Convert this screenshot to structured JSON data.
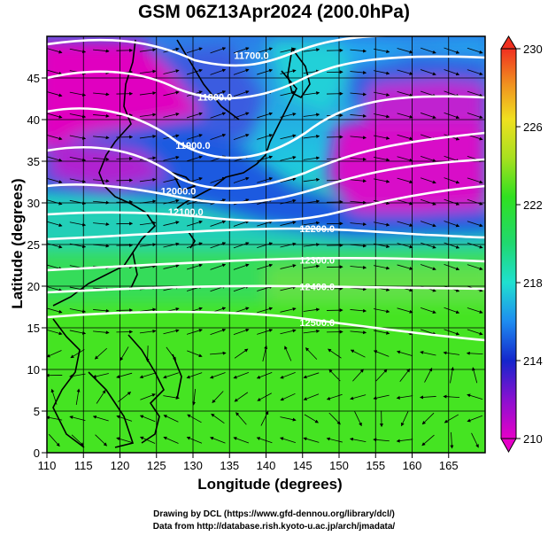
{
  "title": "GSM 06Z13Apr2024 (200.0hPa)",
  "x_axis": {
    "label": "Longitude (degrees)",
    "ticks": [
      "110",
      "115",
      "120",
      "125",
      "130",
      "135",
      "140",
      "145",
      "150",
      "155",
      "160",
      "165"
    ],
    "range": [
      110,
      170
    ]
  },
  "y_axis": {
    "label": "Latitude  (degrees)",
    "ticks": [
      "0",
      "5",
      "10",
      "15",
      "20",
      "25",
      "30",
      "35",
      "40",
      "45"
    ],
    "range": [
      0,
      50
    ]
  },
  "colorbar": {
    "labels": [
      "230",
      "226",
      "222",
      "218",
      "214",
      "210"
    ],
    "range": [
      210,
      230
    ]
  },
  "contours": [
    {
      "label": "11700.0",
      "lon": 138,
      "lat": 47.3
    },
    {
      "label": "11800.0",
      "lon": 133,
      "lat": 42.3
    },
    {
      "label": "11900.0",
      "lon": 130,
      "lat": 36.5
    },
    {
      "label": "12000.0",
      "lon": 128,
      "lat": 31.0
    },
    {
      "label": "12100.0",
      "lon": 129,
      "lat": 28.5
    },
    {
      "label": "12200.0",
      "lon": 147,
      "lat": 26.5
    },
    {
      "label": "12300.0",
      "lon": 147,
      "lat": 22.7
    },
    {
      "label": "12400.0",
      "lon": 147,
      "lat": 19.5
    },
    {
      "label": "12500.0",
      "lon": 147,
      "lat": 15.2
    }
  ],
  "credits": {
    "line1": "Drawing by DCL (https://www.gfd-dennou.org/library/dcl/)",
    "line2": "Data from http://database.rish.kyoto-u.ac.jp/arch/jmadata/"
  }
}
